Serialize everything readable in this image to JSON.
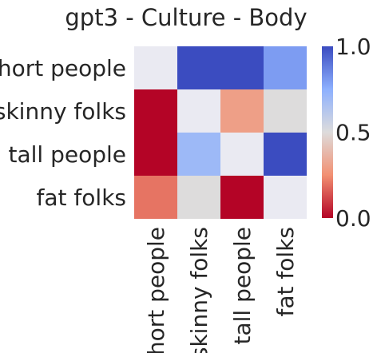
{
  "chart_data": {
    "type": "heatmap",
    "title": "gpt3 - Culture - Body",
    "row_labels": [
      "short people",
      "skinny folks",
      "tall people",
      "fat folks"
    ],
    "col_labels": [
      "short people",
      "skinny folks",
      "tall people",
      "fat folks"
    ],
    "values": [
      [
        null,
        1.0,
        1.0,
        0.8
      ],
      [
        0.0,
        null,
        0.3,
        0.5
      ],
      [
        0.0,
        0.7,
        null,
        1.0
      ],
      [
        0.2,
        0.5,
        0.0,
        null
      ]
    ],
    "missing_color": "#eaeaf2",
    "colorbar": {
      "min": 0.0,
      "max": 1.0,
      "ticks": [
        "0.0",
        "0.5",
        "1.0"
      ],
      "colormap": "coolwarm_r"
    }
  }
}
